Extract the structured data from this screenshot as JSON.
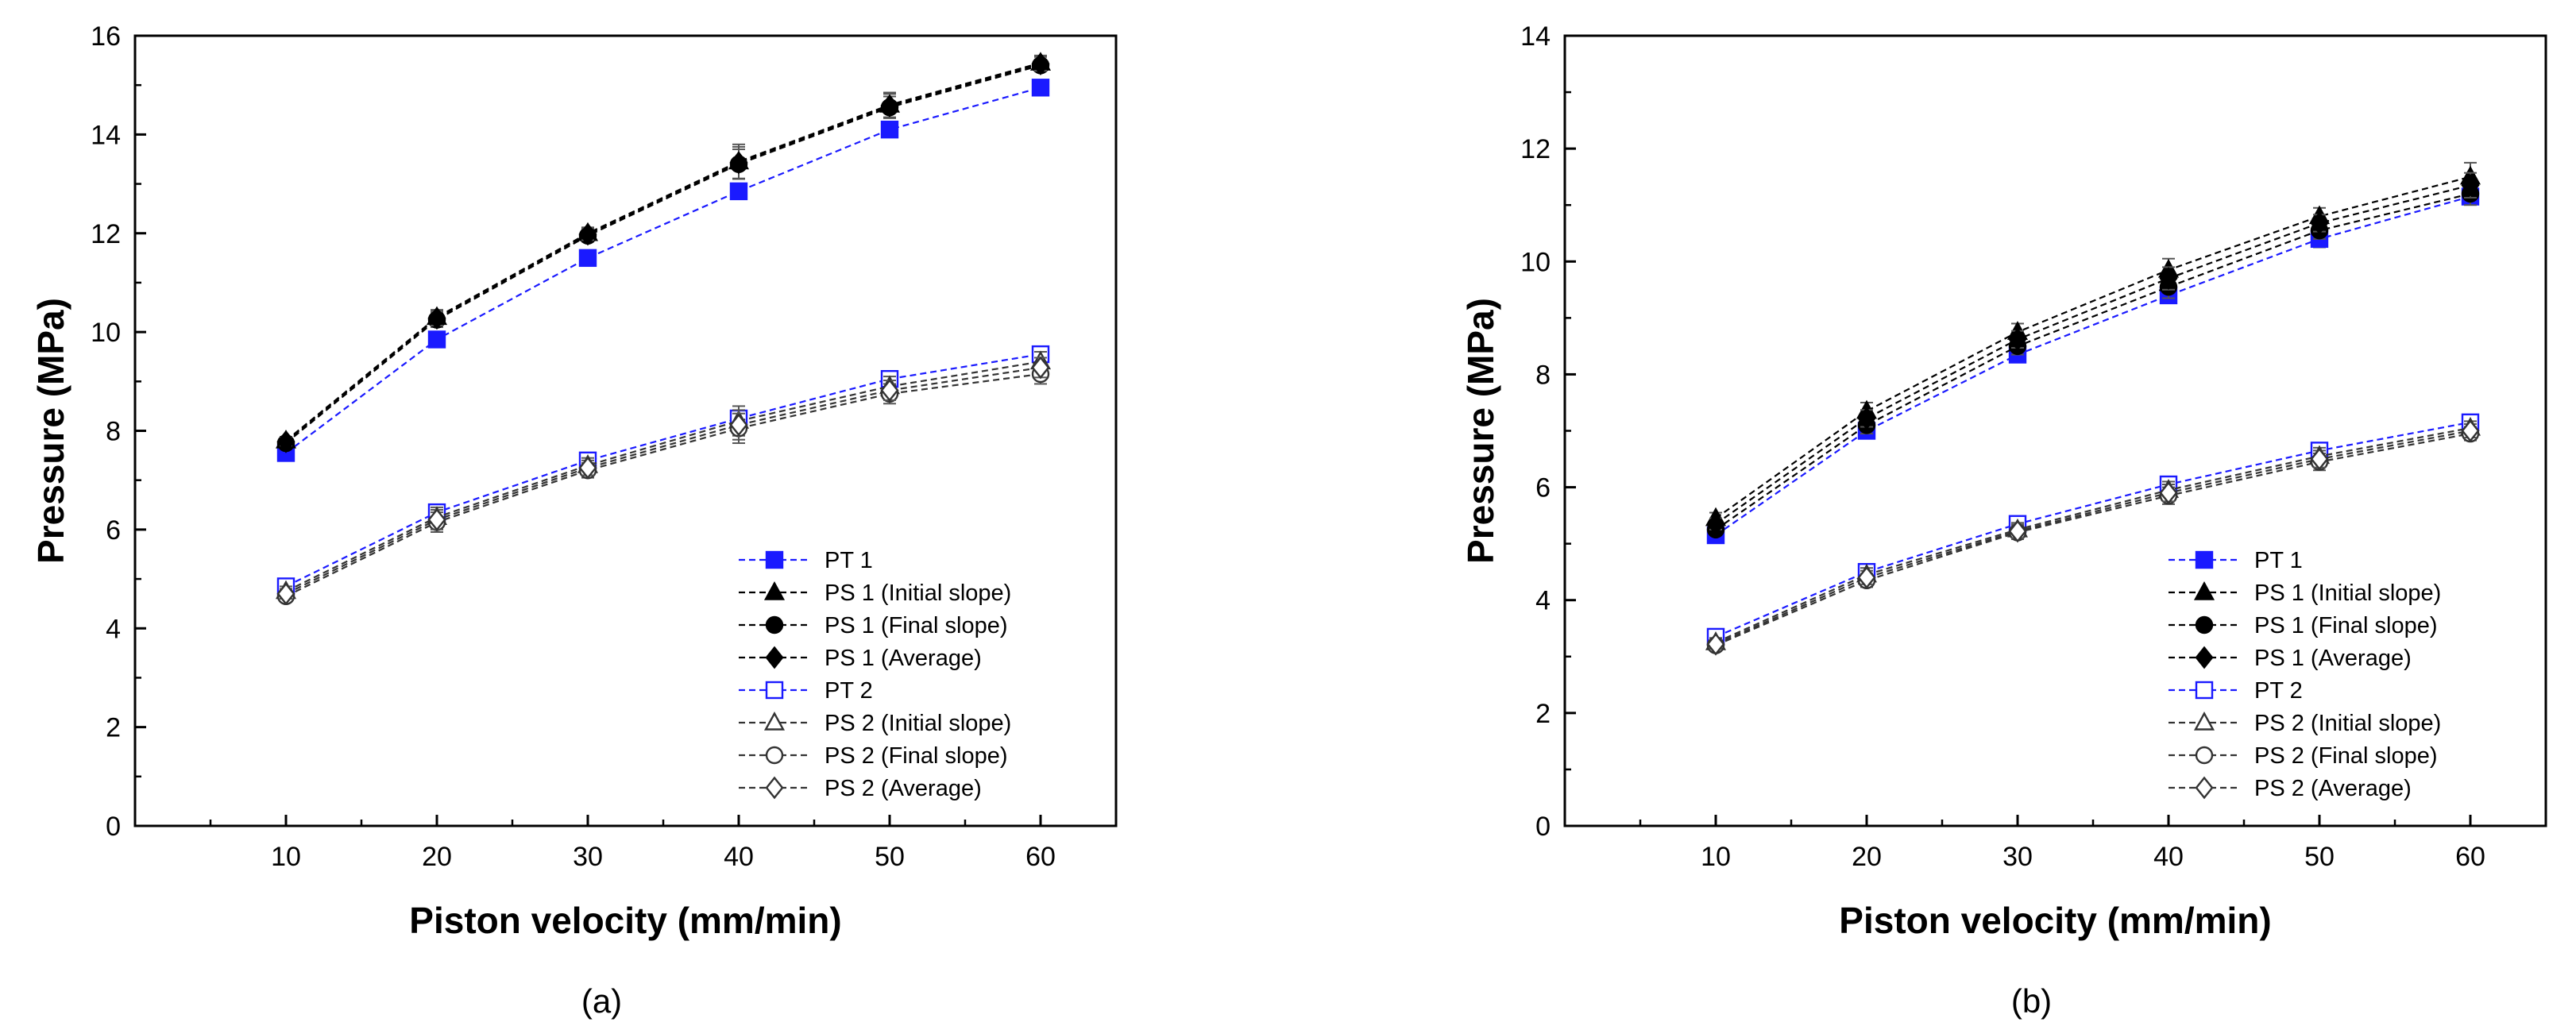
{
  "chart_data": [
    {
      "type": "line",
      "panel_label": "(a)",
      "xlabel": "Piston velocity (mm/min)",
      "ylabel": "Pressure (MPa)",
      "x": [
        10,
        20,
        30,
        40,
        50,
        60
      ],
      "xlim": [
        0,
        65
      ],
      "ylim": [
        0,
        16
      ],
      "xticks": [
        10,
        20,
        30,
        40,
        50,
        60
      ],
      "yticks": [
        0,
        2,
        4,
        6,
        8,
        10,
        12,
        14,
        16
      ],
      "legend_position": "bottom-right",
      "series": [
        {
          "name": "PT 1",
          "color": "#1a1aff",
          "marker": "square",
          "filled": true,
          "values": [
            7.55,
            9.85,
            11.5,
            12.85,
            14.1,
            14.95
          ],
          "errors": [
            0.05,
            0.08,
            0.08,
            0.1,
            0.12,
            0.08
          ]
        },
        {
          "name": "PS 1 (Initial slope)",
          "color": "#000000",
          "marker": "triangle",
          "filled": true,
          "values": [
            7.8,
            10.3,
            12.0,
            13.45,
            14.6,
            15.45
          ],
          "errors": [
            0.08,
            0.15,
            0.12,
            0.35,
            0.25,
            0.15
          ]
        },
        {
          "name": "PS 1 (Final slope)",
          "color": "#000000",
          "marker": "circle",
          "filled": true,
          "values": [
            7.75,
            10.25,
            11.95,
            13.4,
            14.55,
            15.4
          ],
          "errors": [
            0.08,
            0.15,
            0.12,
            0.3,
            0.22,
            0.12
          ]
        },
        {
          "name": "PS 1 (Average)",
          "color": "#000000",
          "marker": "diamond",
          "filled": true,
          "values": [
            7.78,
            10.28,
            11.98,
            13.43,
            14.58,
            15.43
          ],
          "errors": [
            0.08,
            0.15,
            0.12,
            0.32,
            0.24,
            0.14
          ]
        },
        {
          "name": "PT 2",
          "color": "#1a1aff",
          "marker": "square",
          "filled": false,
          "values": [
            4.85,
            6.35,
            7.4,
            8.25,
            9.05,
            9.55
          ],
          "errors": [
            0.05,
            0.1,
            0.1,
            0.15,
            0.15,
            0.15
          ]
        },
        {
          "name": "PS 2 (Initial slope)",
          "color": "#333333",
          "marker": "triangle",
          "filled": false,
          "values": [
            4.75,
            6.25,
            7.3,
            8.2,
            8.9,
            9.4
          ],
          "errors": [
            0.1,
            0.2,
            0.15,
            0.3,
            0.2,
            0.2
          ]
        },
        {
          "name": "PS 2 (Final slope)",
          "color": "#333333",
          "marker": "circle",
          "filled": false,
          "values": [
            4.65,
            6.15,
            7.2,
            8.05,
            8.75,
            9.15
          ],
          "errors": [
            0.1,
            0.2,
            0.15,
            0.3,
            0.2,
            0.2
          ]
        },
        {
          "name": "PS 2 (Average)",
          "color": "#333333",
          "marker": "diamond",
          "filled": false,
          "values": [
            4.7,
            6.2,
            7.25,
            8.12,
            8.82,
            9.28
          ],
          "errors": [
            0.1,
            0.2,
            0.15,
            0.3,
            0.2,
            0.2
          ]
        }
      ]
    },
    {
      "type": "line",
      "panel_label": "(b)",
      "xlabel": "Piston velocity (mm/min)",
      "ylabel": "Pressure (MPa)",
      "x": [
        10,
        20,
        30,
        40,
        50,
        60
      ],
      "xlim": [
        0,
        65
      ],
      "ylim": [
        0,
        14
      ],
      "xticks": [
        10,
        20,
        30,
        40,
        50,
        60
      ],
      "yticks": [
        0,
        2,
        4,
        6,
        8,
        10,
        12,
        14
      ],
      "legend_position": "bottom-right",
      "series": [
        {
          "name": "PT 1",
          "color": "#1a1aff",
          "marker": "square",
          "filled": true,
          "values": [
            5.15,
            7.0,
            8.35,
            9.4,
            10.4,
            11.15
          ],
          "errors": [
            0.05,
            0.08,
            0.1,
            0.1,
            0.15,
            0.1
          ]
        },
        {
          "name": "PS 1 (Initial slope)",
          "color": "#000000",
          "marker": "triangle",
          "filled": true,
          "values": [
            5.45,
            7.35,
            8.75,
            9.85,
            10.8,
            11.5
          ],
          "errors": [
            0.1,
            0.15,
            0.15,
            0.2,
            0.15,
            0.25
          ]
        },
        {
          "name": "PS 1 (Final slope)",
          "color": "#000000",
          "marker": "circle",
          "filled": true,
          "values": [
            5.25,
            7.1,
            8.5,
            9.55,
            10.55,
            11.2
          ],
          "errors": [
            0.1,
            0.15,
            0.15,
            0.2,
            0.15,
            0.2
          ]
        },
        {
          "name": "PS 1 (Average)",
          "color": "#000000",
          "marker": "diamond",
          "filled": true,
          "values": [
            5.35,
            7.22,
            8.62,
            9.7,
            10.68,
            11.35
          ],
          "errors": [
            0.1,
            0.15,
            0.15,
            0.2,
            0.15,
            0.22
          ]
        },
        {
          "name": "PT 2",
          "color": "#1a1aff",
          "marker": "square",
          "filled": false,
          "values": [
            3.35,
            4.5,
            5.35,
            6.05,
            6.65,
            7.15
          ],
          "errors": [
            0.05,
            0.08,
            0.08,
            0.1,
            0.12,
            0.1
          ]
        },
        {
          "name": "PS 2 (Initial slope)",
          "color": "#333333",
          "marker": "triangle",
          "filled": false,
          "values": [
            3.25,
            4.45,
            5.25,
            5.95,
            6.55,
            7.05
          ],
          "errors": [
            0.08,
            0.12,
            0.12,
            0.15,
            0.15,
            0.12
          ]
        },
        {
          "name": "PS 2 (Final slope)",
          "color": "#333333",
          "marker": "circle",
          "filled": false,
          "values": [
            3.2,
            4.35,
            5.2,
            5.85,
            6.45,
            6.95
          ],
          "errors": [
            0.08,
            0.12,
            0.12,
            0.15,
            0.15,
            0.12
          ]
        },
        {
          "name": "PS 2 (Average)",
          "color": "#333333",
          "marker": "diamond",
          "filled": false,
          "values": [
            3.22,
            4.4,
            5.22,
            5.9,
            6.5,
            7.0
          ],
          "errors": [
            0.08,
            0.12,
            0.12,
            0.15,
            0.15,
            0.12
          ]
        }
      ]
    }
  ]
}
